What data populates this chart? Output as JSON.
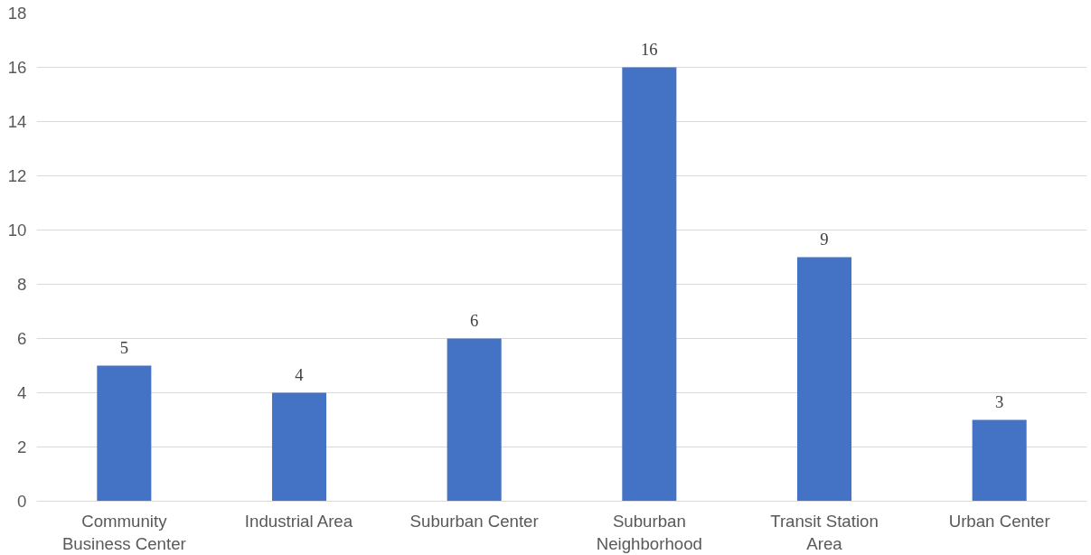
{
  "chart_data": {
    "type": "bar",
    "categories": [
      "Community Business Center",
      "Industrial Area",
      "Suburban Center",
      "Suburban Neighborhood",
      "Transit Station Area",
      "Urban Center"
    ],
    "values": [
      5,
      4,
      6,
      16,
      9,
      3
    ],
    "color": "#4472c4",
    "ylim": [
      0,
      18
    ],
    "yticks": [
      0,
      2,
      4,
      6,
      8,
      10,
      12,
      14,
      16,
      18
    ],
    "grid": "y",
    "data_labels": true
  }
}
